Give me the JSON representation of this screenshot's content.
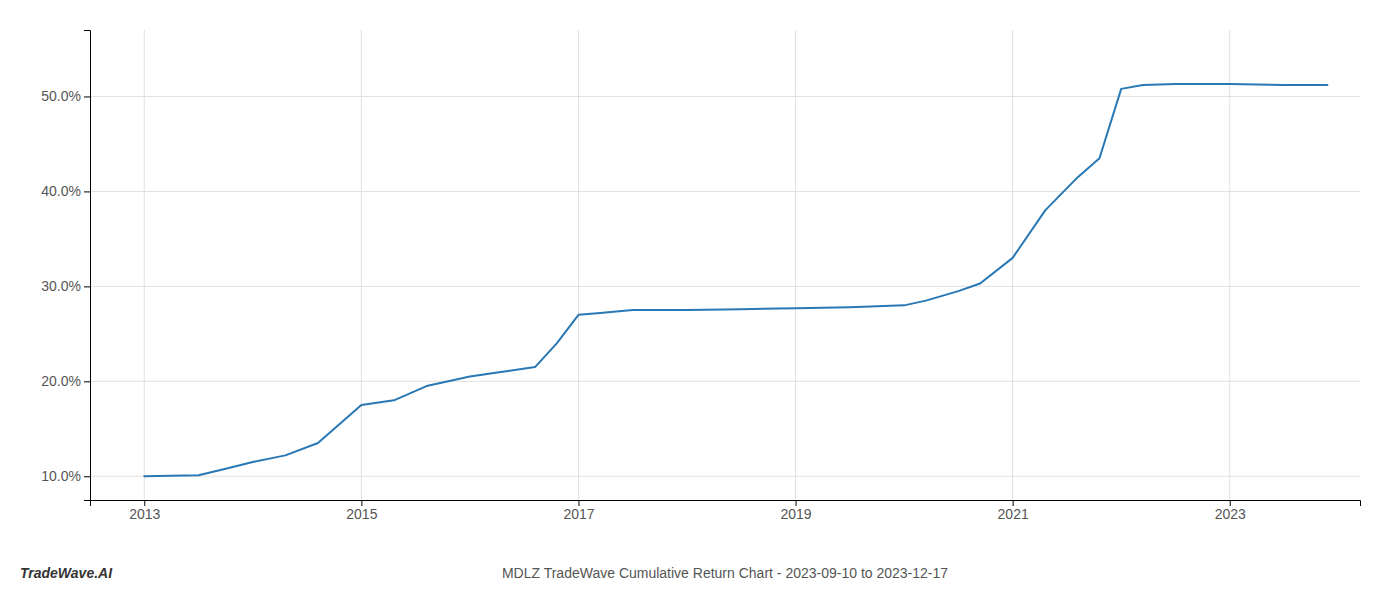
{
  "chart_data": {
    "type": "line",
    "title": "MDLZ TradeWave Cumulative Return Chart - 2023-09-10 to 2023-12-17",
    "annotations": [
      "TradeWave.AI"
    ],
    "x": [
      2013.0,
      2013.25,
      2013.5,
      2013.75,
      2014.0,
      2014.3,
      2014.6,
      2015.0,
      2015.3,
      2015.6,
      2016.0,
      2016.3,
      2016.6,
      2016.8,
      2017.0,
      2017.2,
      2017.5,
      2018.0,
      2018.5,
      2019.0,
      2019.5,
      2020.0,
      2020.2,
      2020.5,
      2020.7,
      2021.0,
      2021.3,
      2021.6,
      2021.8,
      2022.0,
      2022.2,
      2022.5,
      2022.8,
      2023.0,
      2023.5,
      2023.9
    ],
    "values": [
      10.0,
      10.05,
      10.1,
      10.8,
      11.5,
      12.2,
      13.5,
      17.5,
      18.0,
      19.5,
      20.5,
      21.0,
      21.5,
      24.0,
      27.0,
      27.2,
      27.5,
      27.5,
      27.6,
      27.7,
      27.8,
      28.0,
      28.5,
      29.5,
      30.3,
      33.0,
      38.0,
      41.5,
      43.5,
      50.8,
      51.2,
      51.3,
      51.3,
      51.3,
      51.2,
      51.2
    ],
    "color": "#2878b5",
    "xlim": [
      2012.5,
      2024.2
    ],
    "ylim": [
      7.5,
      57.0
    ],
    "xticks": [
      2013,
      2015,
      2017,
      2019,
      2021,
      2023
    ],
    "yticks": [
      {
        "value": 10.0,
        "label": "10.0%"
      },
      {
        "value": 20.0,
        "label": "20.0%"
      },
      {
        "value": 30.0,
        "label": "30.0%"
      },
      {
        "value": 40.0,
        "label": "40.0%"
      },
      {
        "value": 50.0,
        "label": "50.0%"
      }
    ],
    "grid": true
  }
}
